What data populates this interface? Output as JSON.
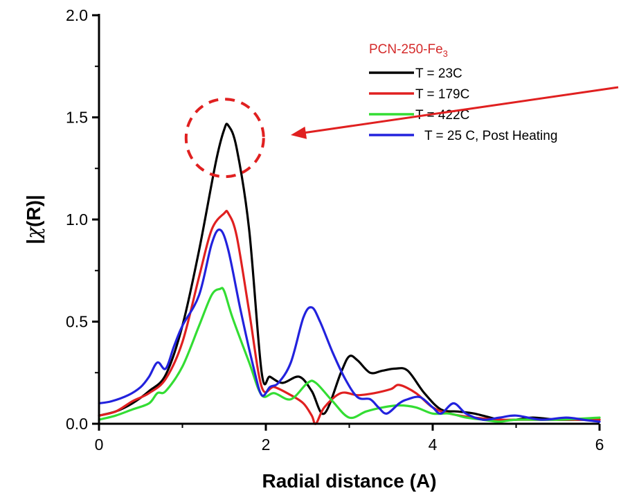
{
  "chart_data": {
    "type": "line",
    "title": "",
    "xlabel": "Radial distance (A)",
    "ylabel_parts": {
      "prefix": "|",
      "chi": "χ",
      "suffix": "(R)|"
    },
    "xlim": [
      0,
      6
    ],
    "ylim": [
      0,
      2.0
    ],
    "x_ticks": [
      "0",
      "2",
      "4",
      "6"
    ],
    "y_ticks": [
      "0.0",
      "0.5",
      "1.0",
      "1.5",
      "2.0"
    ],
    "grid": false,
    "legend_placement": "top-right",
    "legend_title": {
      "text": "PCN-250-Fe",
      "subscript": "3",
      "color": "#d42a2a"
    },
    "annotation": {
      "type": "dashed-circle-with-arrow",
      "color": "#e02020",
      "target_x": 1.55,
      "target_y": 1.44
    },
    "series": [
      {
        "name": "T = 23C",
        "color": "#000000",
        "x": [
          0,
          0.2,
          0.4,
          0.6,
          0.8,
          1.0,
          1.2,
          1.4,
          1.5,
          1.55,
          1.65,
          1.8,
          1.95,
          2.05,
          2.2,
          2.4,
          2.55,
          2.7,
          2.9,
          3.0,
          3.1,
          3.25,
          3.4,
          3.55,
          3.7,
          3.9,
          4.1,
          4.3,
          4.5,
          4.8,
          5.0,
          5.2,
          5.5,
          5.8,
          6.0
        ],
        "y": [
          0.04,
          0.06,
          0.1,
          0.16,
          0.24,
          0.48,
          0.85,
          1.28,
          1.44,
          1.46,
          1.35,
          0.95,
          0.25,
          0.23,
          0.2,
          0.23,
          0.16,
          0.05,
          0.25,
          0.33,
          0.31,
          0.25,
          0.26,
          0.27,
          0.26,
          0.15,
          0.07,
          0.06,
          0.05,
          0.02,
          0.02,
          0.03,
          0.02,
          0.02,
          0.02
        ]
      },
      {
        "name": "T = 179C",
        "color": "#e02020",
        "x": [
          0,
          0.2,
          0.4,
          0.6,
          0.8,
          1.0,
          1.2,
          1.35,
          1.5,
          1.55,
          1.65,
          1.8,
          1.95,
          2.1,
          2.3,
          2.45,
          2.55,
          2.6,
          2.7,
          2.9,
          3.1,
          3.3,
          3.5,
          3.6,
          3.8,
          4.0,
          4.2,
          4.5,
          4.8,
          5.0,
          5.3,
          5.6,
          6.0
        ],
        "y": [
          0.04,
          0.06,
          0.11,
          0.15,
          0.22,
          0.4,
          0.72,
          0.95,
          1.03,
          1.03,
          0.92,
          0.55,
          0.18,
          0.18,
          0.14,
          0.1,
          0.04,
          0.0,
          0.08,
          0.15,
          0.14,
          0.15,
          0.17,
          0.19,
          0.15,
          0.08,
          0.05,
          0.03,
          0.02,
          0.02,
          0.02,
          0.02,
          0.02
        ]
      },
      {
        "name": "T = 422C",
        "color": "#33dd33",
        "x": [
          0,
          0.2,
          0.4,
          0.6,
          0.7,
          0.8,
          1.0,
          1.2,
          1.35,
          1.45,
          1.5,
          1.6,
          1.8,
          1.95,
          2.1,
          2.3,
          2.5,
          2.6,
          2.8,
          3.0,
          3.2,
          3.4,
          3.6,
          3.8,
          4.0,
          4.2,
          4.4,
          4.6,
          4.8,
          5.0,
          5.5,
          6.0
        ],
        "y": [
          0.02,
          0.04,
          0.07,
          0.1,
          0.15,
          0.16,
          0.28,
          0.48,
          0.63,
          0.66,
          0.65,
          0.52,
          0.3,
          0.14,
          0.15,
          0.12,
          0.2,
          0.2,
          0.11,
          0.03,
          0.06,
          0.08,
          0.09,
          0.08,
          0.05,
          0.05,
          0.03,
          0.02,
          0.01,
          0.02,
          0.02,
          0.03
        ]
      },
      {
        "name": "T = 25 C, Post Heating",
        "color": "#2222dd",
        "x": [
          0,
          0.15,
          0.35,
          0.5,
          0.6,
          0.7,
          0.8,
          0.9,
          1.0,
          1.2,
          1.35,
          1.45,
          1.55,
          1.7,
          1.85,
          1.95,
          2.05,
          2.15,
          2.3,
          2.45,
          2.55,
          2.65,
          2.8,
          2.95,
          3.1,
          3.25,
          3.35,
          3.45,
          3.6,
          3.7,
          3.85,
          4.0,
          4.1,
          4.25,
          4.4,
          4.6,
          4.8,
          5.0,
          5.3,
          5.6,
          5.8,
          6.0
        ],
        "y": [
          0.1,
          0.11,
          0.14,
          0.18,
          0.23,
          0.3,
          0.27,
          0.38,
          0.48,
          0.63,
          0.88,
          0.95,
          0.85,
          0.55,
          0.28,
          0.14,
          0.18,
          0.2,
          0.3,
          0.52,
          0.57,
          0.5,
          0.35,
          0.22,
          0.13,
          0.12,
          0.08,
          0.05,
          0.1,
          0.12,
          0.13,
          0.08,
          0.05,
          0.1,
          0.05,
          0.02,
          0.03,
          0.04,
          0.02,
          0.03,
          0.02,
          0.01
        ]
      }
    ]
  }
}
